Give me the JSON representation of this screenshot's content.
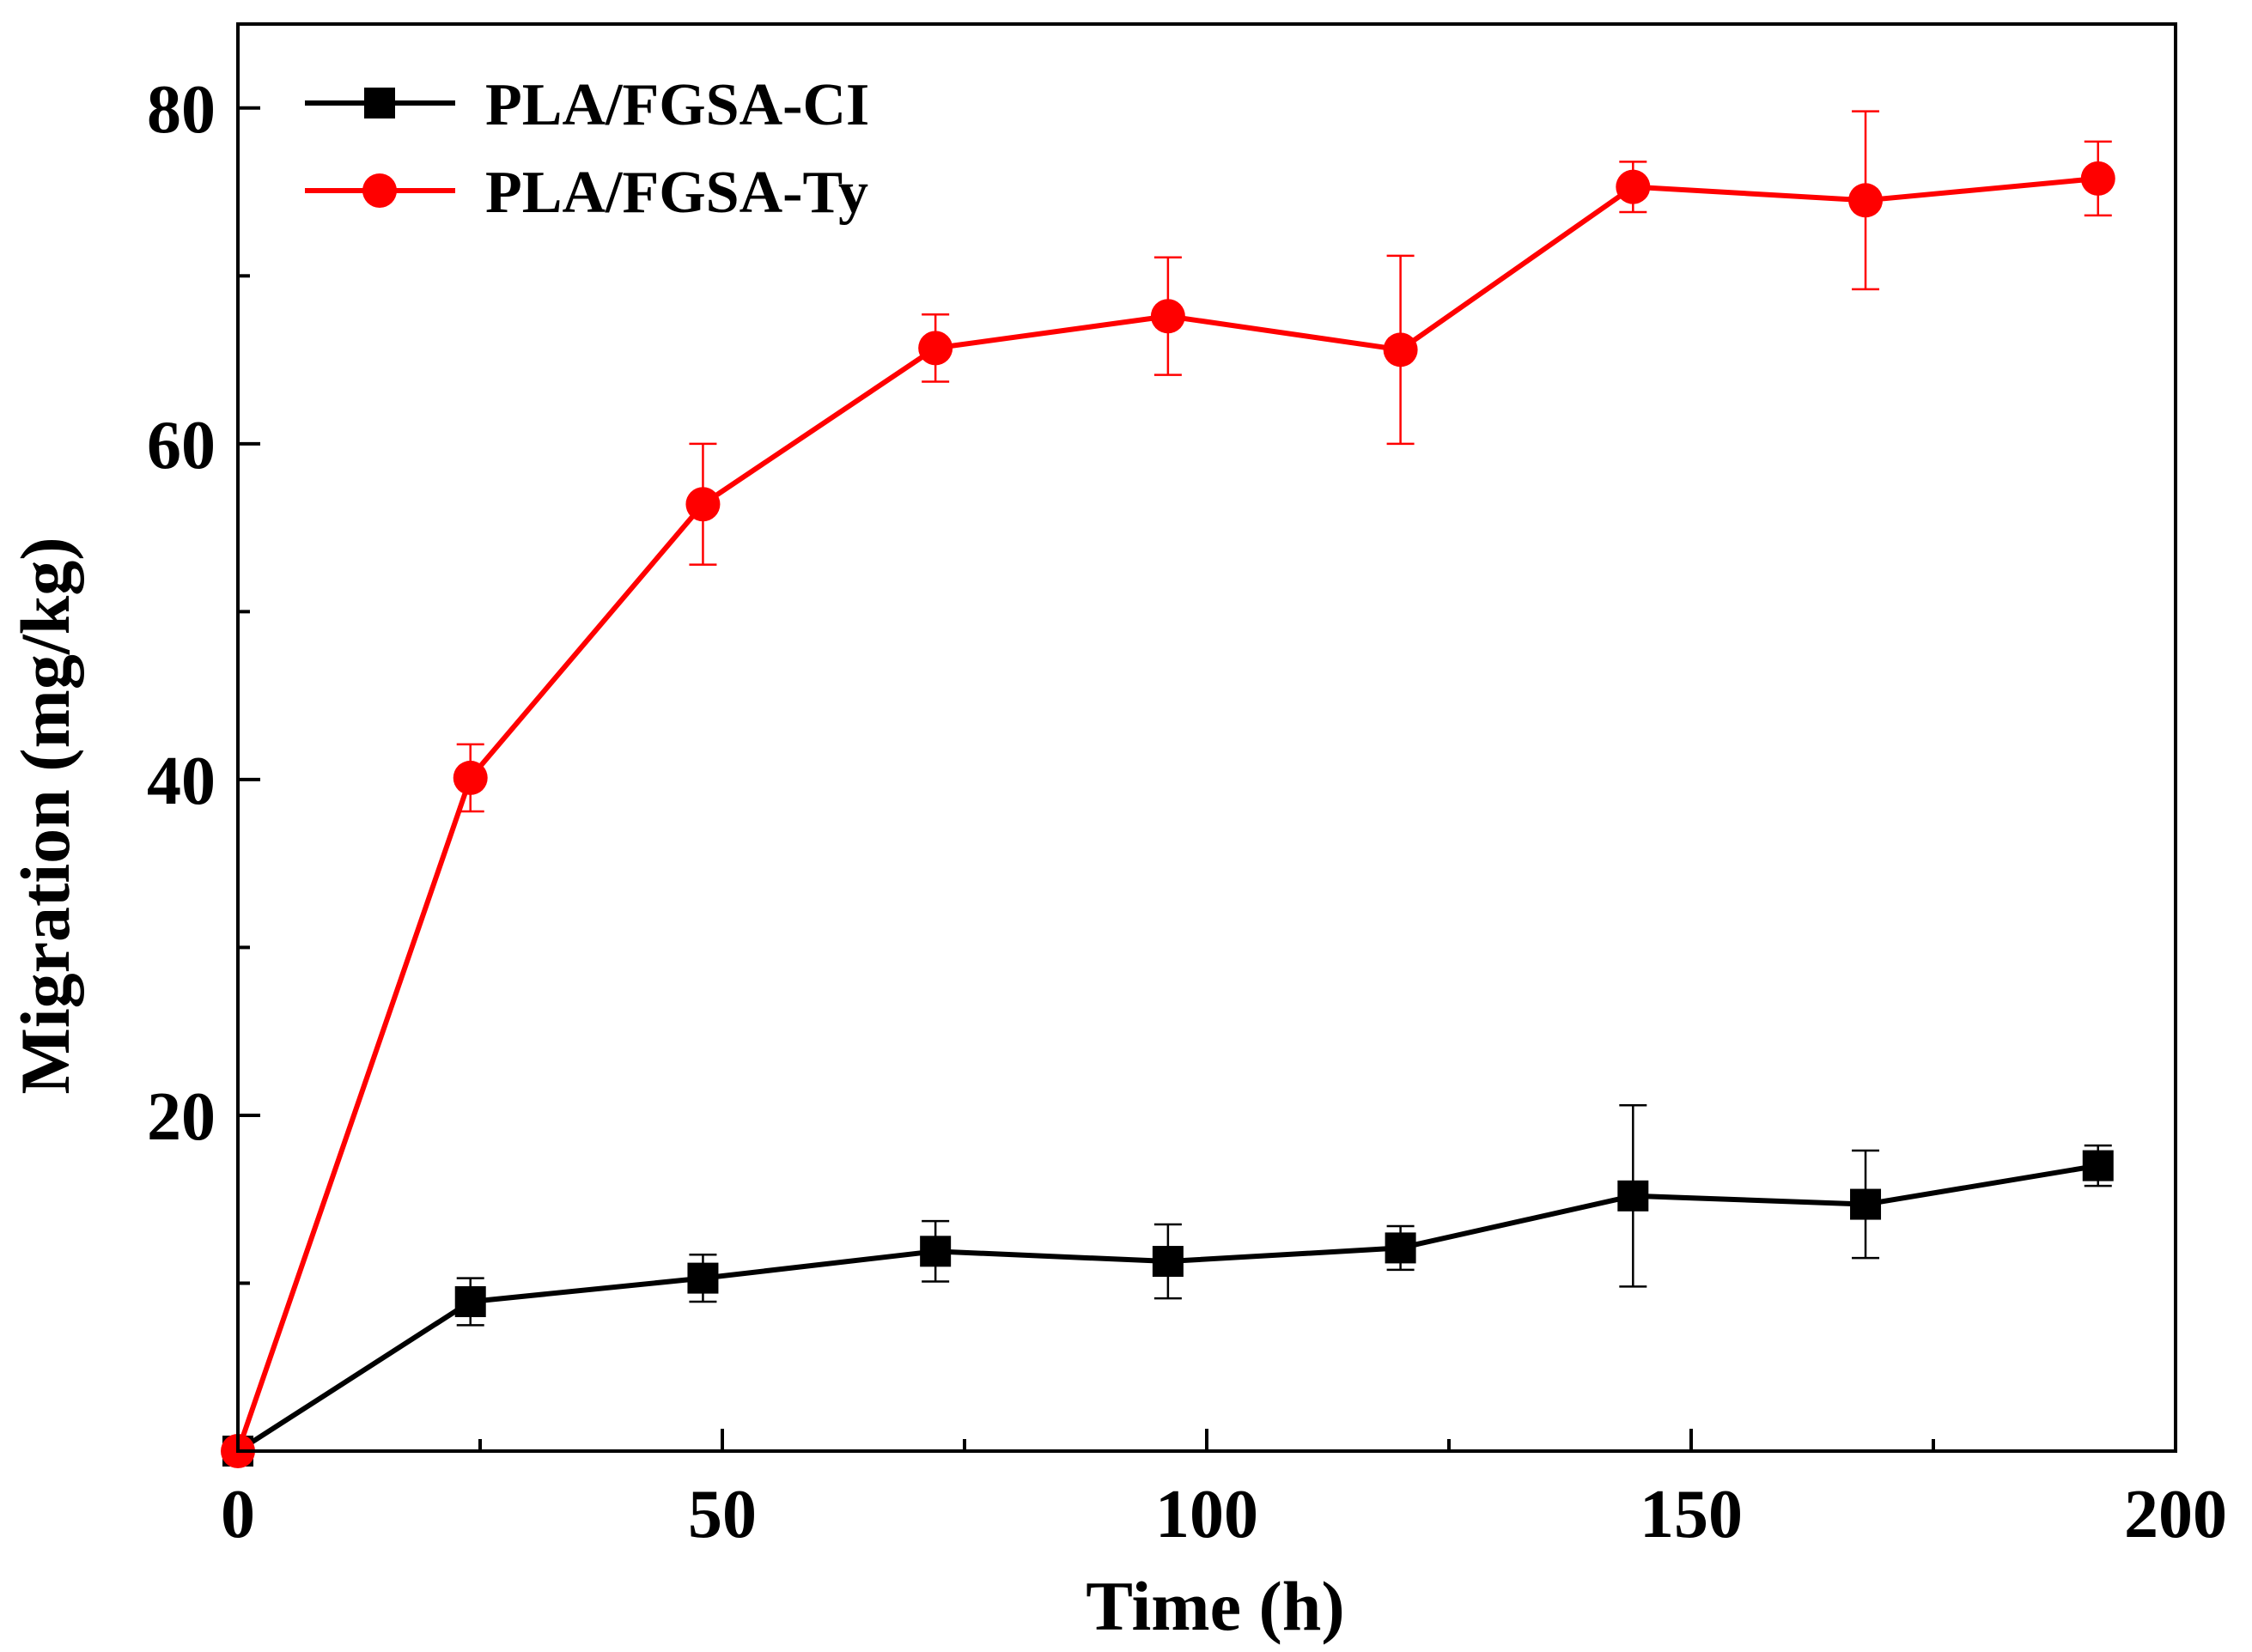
{
  "chart_data": {
    "type": "line",
    "title": "",
    "xlabel": "Time (h)",
    "ylabel": "Migration (mg/kg)",
    "xlim": [
      0,
      200
    ],
    "ylim": [
      0,
      85
    ],
    "x_ticks": [
      0,
      50,
      100,
      150,
      200
    ],
    "x_tick_labels": [
      "0",
      "50",
      "100",
      "150",
      "200"
    ],
    "x_minor_ticks": [
      25,
      75,
      125,
      175
    ],
    "y_ticks": [
      20,
      40,
      60,
      80
    ],
    "y_tick_labels": [
      "20",
      "40",
      "60",
      "80"
    ],
    "y_minor_ticks": [
      10,
      30,
      50,
      70
    ],
    "grid": false,
    "legend_position": "top-left",
    "series": [
      {
        "name": "PLA/FGSA-CI",
        "color": "#000000",
        "marker": "square",
        "x": [
          0,
          24,
          48,
          72,
          96,
          120,
          144,
          168,
          192
        ],
        "y": [
          0,
          8.9,
          10.3,
          11.9,
          11.3,
          12.1,
          15.2,
          14.7,
          17.0
        ],
        "error": [
          0,
          1.4,
          1.4,
          1.8,
          2.2,
          1.3,
          5.4,
          3.2,
          1.2
        ]
      },
      {
        "name": "PLA/FGSA-Ty",
        "color": "#ff0000",
        "marker": "circle",
        "x": [
          0,
          24,
          48,
          72,
          96,
          120,
          144,
          168,
          192
        ],
        "y": [
          0,
          40.1,
          56.4,
          65.7,
          67.6,
          65.6,
          75.3,
          74.5,
          75.8
        ],
        "error": [
          0,
          2.0,
          3.6,
          2.0,
          3.5,
          5.6,
          1.5,
          5.3,
          2.2
        ]
      }
    ]
  }
}
